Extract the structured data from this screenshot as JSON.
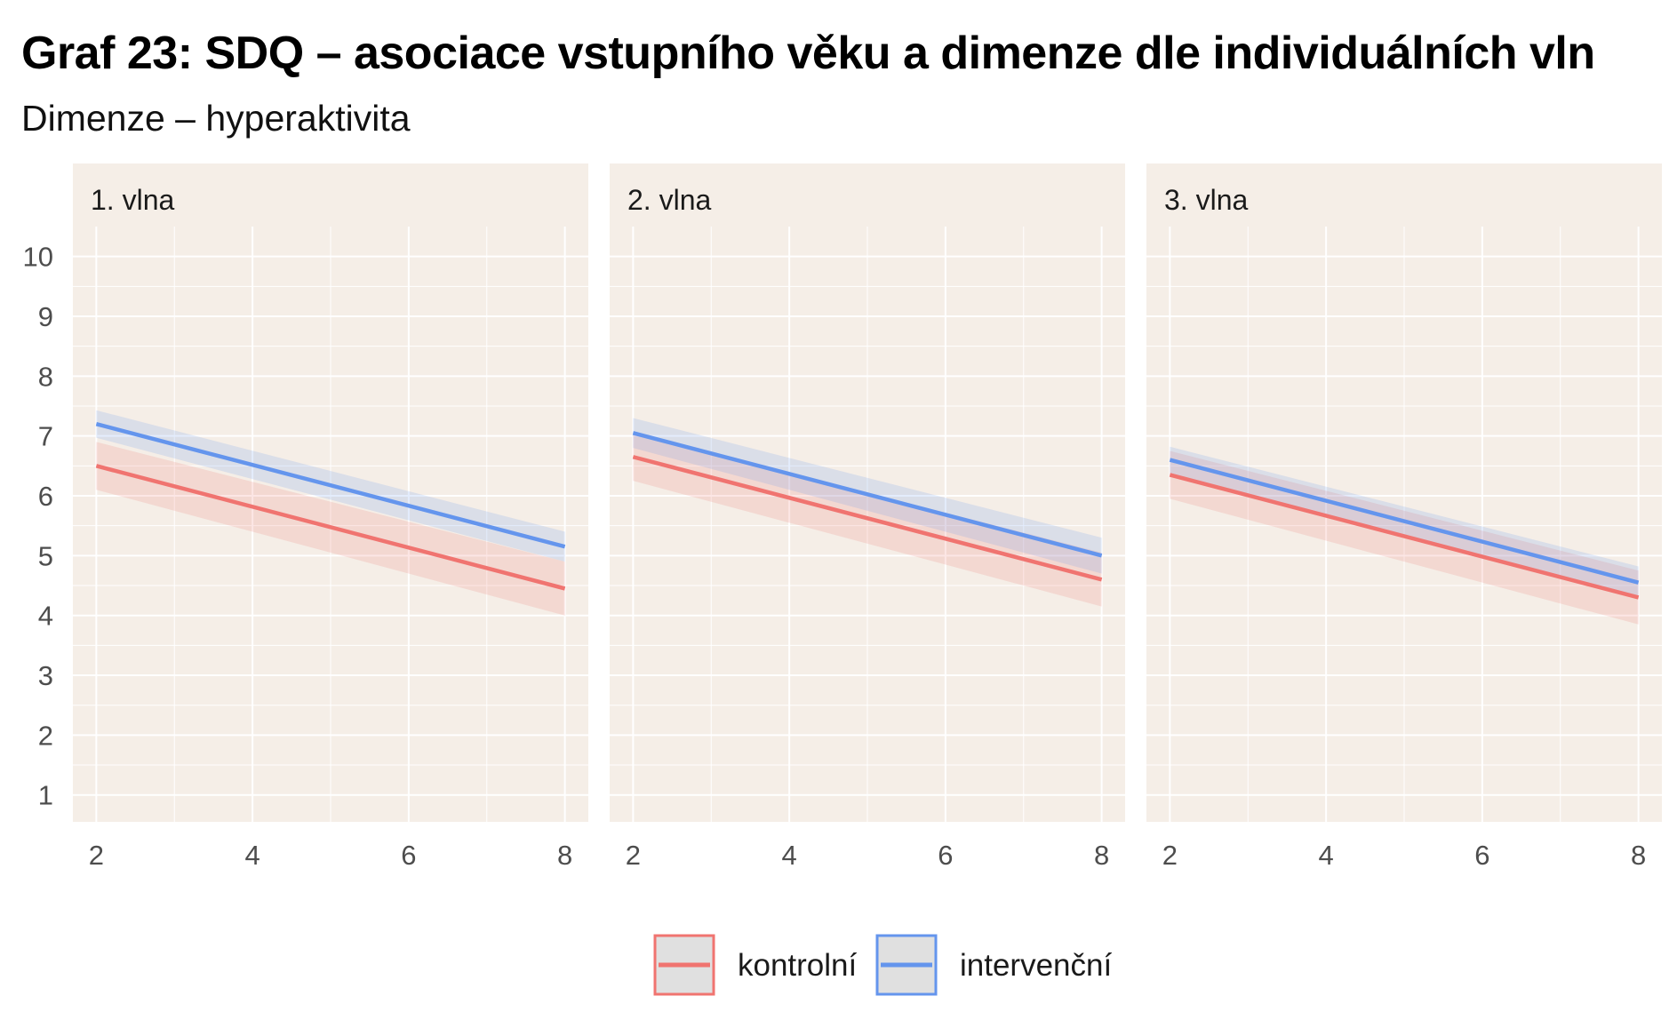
{
  "title": "Graf 23: SDQ – asociace vstupního věku a dimenze dle individuálních vln",
  "subtitle": "Dimenze – hyperaktivita",
  "colors": {
    "panel_background": "#f5eee7",
    "grid": "#ffffff",
    "kontrolni": "#f07470",
    "intervencni": "#6495ed",
    "legend_key_background": "#e0e0e0"
  },
  "chart_data": {
    "type": "line",
    "facets": [
      "1. vlna",
      "2. vlna",
      "3. vlna"
    ],
    "xlim": [
      1.7,
      8.3
    ],
    "ylim": [
      0.55,
      10.5
    ],
    "x_ticks": [
      2,
      4,
      6,
      8
    ],
    "y_ticks": [
      1,
      2,
      3,
      4,
      5,
      6,
      7,
      8,
      9,
      10
    ],
    "grid": true,
    "legend_position": "bottom",
    "legend": [
      {
        "name": "kontrolní",
        "color": "#f07470"
      },
      {
        "name": "intervenční",
        "color": "#6495ed"
      }
    ],
    "panels": [
      {
        "label": "1. vlna",
        "series": [
          {
            "name": "kontrolní",
            "x": [
              2,
              8
            ],
            "y": [
              6.5,
              4.45
            ],
            "ci_low": [
              6.1,
              4.0
            ],
            "ci_high": [
              6.9,
              4.9
            ]
          },
          {
            "name": "intervenční",
            "x": [
              2,
              8
            ],
            "y": [
              7.2,
              5.15
            ],
            "ci_low": [
              6.97,
              4.9
            ],
            "ci_high": [
              7.43,
              5.4
            ]
          }
        ]
      },
      {
        "label": "2. vlna",
        "series": [
          {
            "name": "kontrolní",
            "x": [
              2,
              8
            ],
            "y": [
              6.65,
              4.6
            ],
            "ci_low": [
              6.25,
              4.15
            ],
            "ci_high": [
              7.05,
              5.05
            ]
          },
          {
            "name": "intervenční",
            "x": [
              2,
              8
            ],
            "y": [
              7.05,
              5.0
            ],
            "ci_low": [
              6.8,
              4.7
            ],
            "ci_high": [
              7.3,
              5.3
            ]
          }
        ]
      },
      {
        "label": "3. vlna",
        "series": [
          {
            "name": "kontrolní",
            "x": [
              2,
              8
            ],
            "y": [
              6.35,
              4.3
            ],
            "ci_low": [
              5.95,
              3.85
            ],
            "ci_high": [
              6.75,
              4.75
            ]
          },
          {
            "name": "intervenční",
            "x": [
              2,
              8
            ],
            "y": [
              6.6,
              4.55
            ],
            "ci_low": [
              6.38,
              4.28
            ],
            "ci_high": [
              6.82,
              4.82
            ]
          }
        ]
      }
    ]
  }
}
